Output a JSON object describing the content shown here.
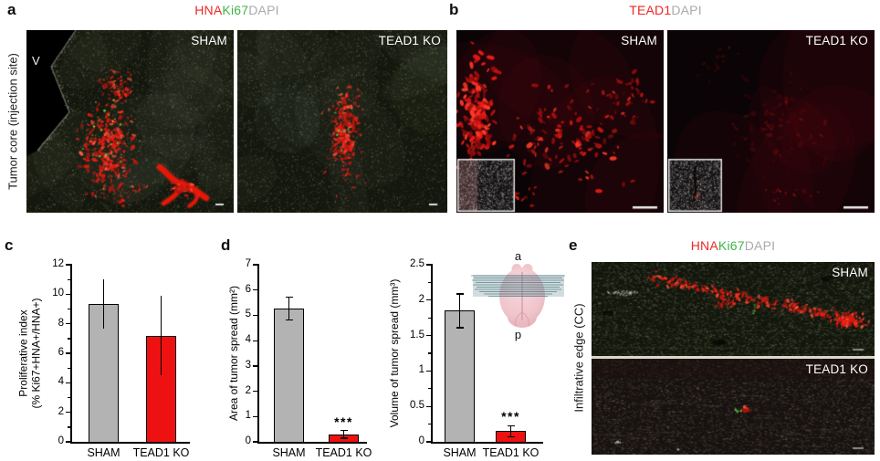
{
  "figure": {
    "panels": {
      "a": {
        "label": "a",
        "side_label": "Tumor core (injection site)",
        "title_parts": [
          {
            "text": "HNA",
            "color": "#ed2724"
          },
          {
            "text": "Ki67",
            "color": "#3eb449"
          },
          {
            "text": "DAPI",
            "color": "#a8aaad"
          }
        ],
        "images": [
          {
            "overlay": "SHAM",
            "annotation": "V"
          },
          {
            "overlay": "TEAD1 KO"
          }
        ]
      },
      "b": {
        "label": "b",
        "title_parts": [
          {
            "text": "TEAD1",
            "color": "#ed2724"
          },
          {
            "text": "DAPI",
            "color": "#a8aaad"
          }
        ],
        "images": [
          {
            "overlay": "SHAM"
          },
          {
            "overlay": "TEAD1 KO"
          }
        ]
      },
      "c": {
        "label": "c"
      },
      "d": {
        "label": "d",
        "brain": {
          "anterior": "a",
          "posterior": "p"
        }
      },
      "e": {
        "label": "e",
        "side_label": "Infiltrative edge (CC)",
        "title_parts": [
          {
            "text": "HNA",
            "color": "#ed2724"
          },
          {
            "text": "Ki67",
            "color": "#3eb449"
          },
          {
            "text": "DAPI",
            "color": "#a8aaad"
          }
        ],
        "images": [
          {
            "overlay": "SHAM"
          },
          {
            "overlay": "TEAD1 KO"
          }
        ]
      }
    }
  },
  "chart_data": [
    {
      "type": "bar",
      "panel": "c",
      "title": "",
      "categories": [
        "SHAM",
        "TEAD1 KO"
      ],
      "values": [
        9.35,
        7.2
      ],
      "errors": [
        1.65,
        2.7
      ],
      "ylabel": "Proliferative index (% Ki67+HNA+/HNA+)",
      "ylabel_lines": [
        "Proliferative index",
        "(% Ki67+HNA+/HNA+)"
      ],
      "xlabel": "",
      "ylim": [
        0,
        12
      ],
      "ytick_step": 2,
      "yminor_step": 1,
      "bar_colors": [
        "#b3b3b3",
        "#ee1111"
      ],
      "sig": [
        "",
        ""
      ],
      "grid": false,
      "legend": null
    },
    {
      "type": "bar",
      "panel": "d-left",
      "title": "",
      "categories": [
        "SHAM",
        "TEAD1 KO"
      ],
      "values": [
        5.27,
        0.3
      ],
      "errors": [
        0.45,
        0.15
      ],
      "ylabel": "Area of tumor spread (mm²)",
      "ylabel_lines": [
        "Area of tumor spread (mm²)"
      ],
      "xlabel": "",
      "ylim": [
        0,
        7
      ],
      "ytick_step": 1,
      "yminor_step": null,
      "bar_colors": [
        "#b3b3b3",
        "#ee1111"
      ],
      "sig": [
        "",
        "***"
      ],
      "grid": false,
      "legend": null
    },
    {
      "type": "bar",
      "panel": "d-right",
      "title": "",
      "categories": [
        "SHAM",
        "TEAD1 KO"
      ],
      "values": [
        1.85,
        0.15
      ],
      "errors": [
        0.24,
        0.08
      ],
      "ylabel": "Volume of tumor spread (mm³)",
      "ylabel_lines": [
        "Volume of tumor spread (mm³)"
      ],
      "xlabel": "",
      "ylim": [
        0,
        2.5
      ],
      "ytick_step": 0.5,
      "yminor_step": 0.25,
      "bar_colors": [
        "#b3b3b3",
        "#ee1111"
      ],
      "sig": [
        "",
        "***"
      ],
      "grid": false,
      "legend": null
    }
  ]
}
